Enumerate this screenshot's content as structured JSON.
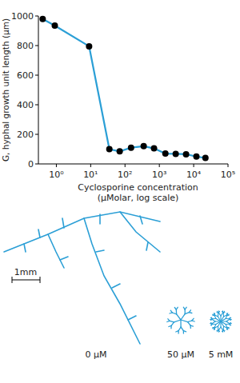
{
  "chart_data": {
    "type": "line",
    "y_label": "G, hyphal growth unit length (µm)",
    "x_label": "Cyclosporine concentration (µMolar, log scale)",
    "x": [
      0.4,
      0.9,
      9,
      35,
      70,
      150,
      350,
      700,
      1500,
      3000,
      6000,
      12000,
      22000
    ],
    "values": [
      980,
      935,
      795,
      100,
      85,
      110,
      120,
      105,
      70,
      68,
      65,
      50,
      40
    ],
    "color": "#2b9fd6",
    "marker": "circle",
    "log": "x",
    "xlim": [
      0.3,
      100000
    ],
    "xticks": [
      {
        "value": 1,
        "label": "10⁰"
      },
      {
        "value": 10,
        "label": "10¹"
      },
      {
        "value": 100,
        "label": "10²"
      },
      {
        "value": 1000,
        "label": "10³"
      },
      {
        "value": 10000,
        "label": "10⁴"
      },
      {
        "value": 100000,
        "label": "10⁵"
      }
    ],
    "ylim": [
      0,
      1000
    ],
    "yticks": [
      0,
      200,
      400,
      600,
      800,
      1000
    ]
  },
  "illustration": {
    "scale_bar_label": "1mm",
    "labels": [
      "0 µM",
      "50 µM",
      "5 mM"
    ]
  }
}
